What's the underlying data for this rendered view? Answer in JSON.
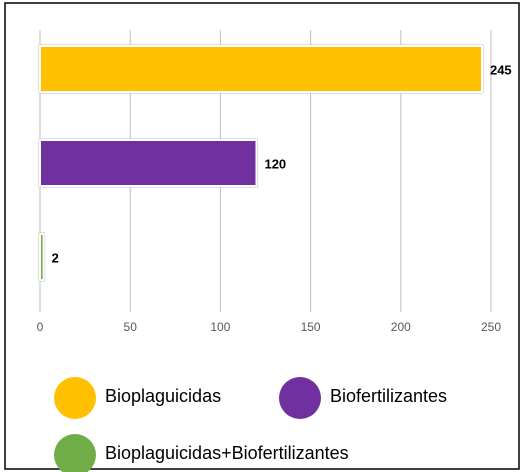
{
  "chart_data": {
    "type": "bar",
    "orientation": "horizontal",
    "categories": [
      "Bioplaguicidas",
      "Biofertilizantes",
      "Bioplaguicidas+Biofertilizantes"
    ],
    "values": [
      245,
      120,
      2
    ],
    "colors": [
      "#ffc000",
      "#7030a0",
      "#70ad47"
    ],
    "xlim": [
      0,
      250
    ],
    "xticks": [
      0,
      50,
      100,
      150,
      200,
      250
    ],
    "grid": true,
    "legend": "bottom"
  }
}
